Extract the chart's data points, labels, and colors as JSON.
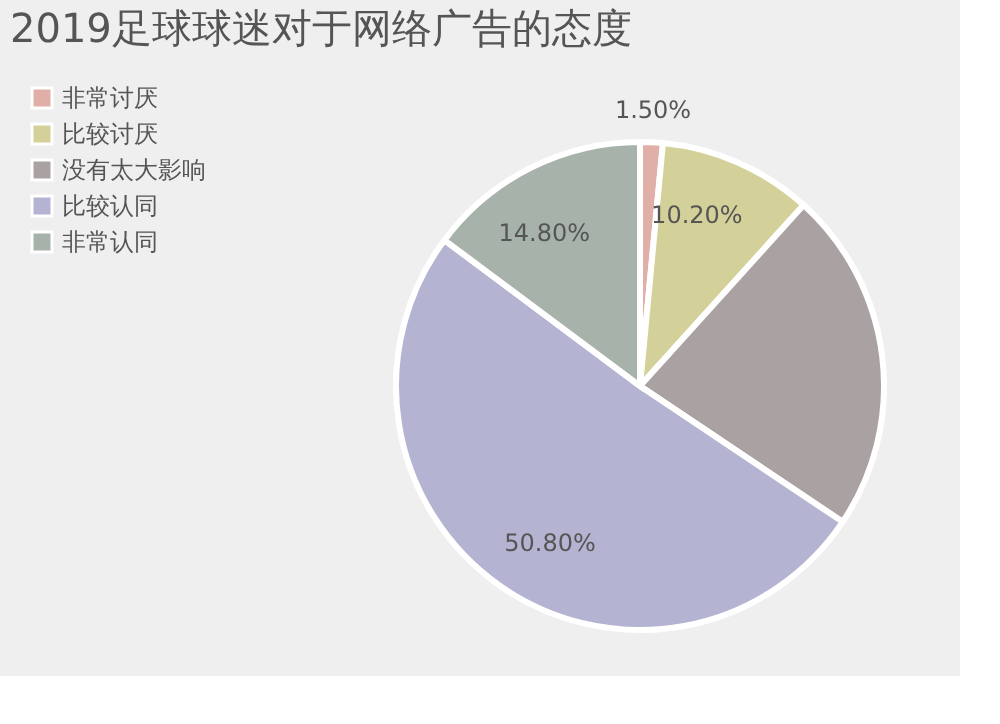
{
  "chart_data": {
    "type": "pie",
    "title": "2019足球球迷对于网络广告的态度",
    "categories": [
      "非常讨厌",
      "比较讨厌",
      "没有太大影响",
      "比较认同",
      "非常认同"
    ],
    "values": [
      1.5,
      10.2,
      22.7,
      50.8,
      14.8
    ],
    "colors": [
      "#e0b0a8",
      "#d4d09a",
      "#aaa2a2",
      "#b4b4d2",
      "#a6b2aa"
    ],
    "value_labels": [
      "1.50%",
      "10.20%",
      null,
      "50.80%",
      "14.80%"
    ],
    "legend": "top left"
  }
}
